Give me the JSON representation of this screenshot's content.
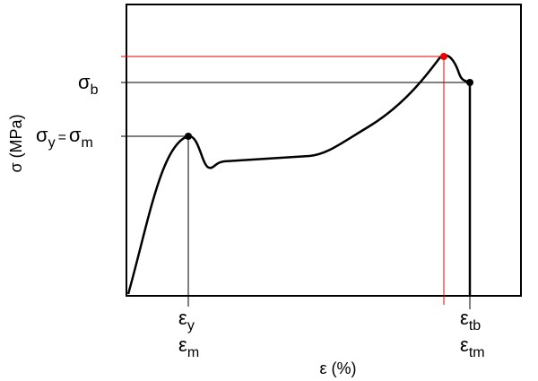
{
  "axes": {
    "x_label": "ε (%)",
    "y_label": "σ (MPa)"
  },
  "labels": {
    "sigma_b": {
      "symbol": "σ",
      "sub": "b"
    },
    "sigma_y_m": {
      "symbol1": "σ",
      "sub1": "y",
      "equals": "=",
      "symbol2": "σ",
      "sub2": "m"
    },
    "eps_y": {
      "symbol": "ε",
      "sub": "y"
    },
    "eps_m": {
      "symbol": "ε",
      "sub": "m"
    },
    "eps_tb": {
      "symbol": "ε",
      "sub": "tb"
    },
    "eps_tm": {
      "symbol": "ε",
      "sub": "tm"
    }
  }
}
